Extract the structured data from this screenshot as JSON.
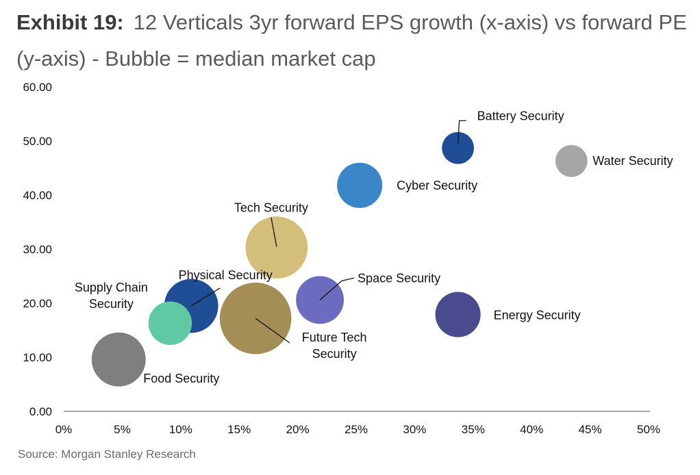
{
  "title": {
    "exhibit": "Exhibit 19:",
    "text": "12 Verticals 3yr forward EPS growth (x-axis) vs forward PE (y-axis) - Bubble = median market cap"
  },
  "source": "Source: Morgan Stanley Research",
  "chart_data": {
    "type": "scatter",
    "variant": "bubble",
    "xlim": [
      0,
      0.5
    ],
    "ylim": [
      0,
      60
    ],
    "x_ticks": [
      "0%",
      "5%",
      "10%",
      "15%",
      "20%",
      "25%",
      "30%",
      "35%",
      "40%",
      "45%",
      "50%"
    ],
    "y_ticks": [
      "0.00",
      "10.00",
      "20.00",
      "30.00",
      "40.00",
      "50.00",
      "60.00"
    ],
    "grid": false,
    "points": [
      {
        "label": "Battery Security",
        "x": 0.337,
        "y": 48.7,
        "size": 1.3,
        "color": "#1f4e96"
      },
      {
        "label": "Water Security",
        "x": 0.434,
        "y": 46.3,
        "size": 1.3,
        "color": "#a6a6a6"
      },
      {
        "label": "Cyber Security",
        "x": 0.253,
        "y": 41.8,
        "size": 2.6,
        "color": "#3a86c8"
      },
      {
        "label": "Tech Security",
        "x": 0.182,
        "y": 30.3,
        "size": 4.9,
        "color": "#d4bf7a"
      },
      {
        "label": "Physical Security",
        "x": 0.109,
        "y": 19.5,
        "size": 3.7,
        "color": "#1f4e96"
      },
      {
        "label": "Space Security",
        "x": 0.219,
        "y": 20.6,
        "size": 2.9,
        "color": "#6b6bc0"
      },
      {
        "label": "Supply Chain Security",
        "x": 0.091,
        "y": 16.3,
        "size": 2.4,
        "color": "#5fc9a3"
      },
      {
        "label": "Future Tech Security",
        "x": 0.164,
        "y": 17.2,
        "size": 6.5,
        "color": "#a48e55"
      },
      {
        "label": "Energy Security",
        "x": 0.337,
        "y": 17.9,
        "size": 2.6,
        "color": "#4a4a8e"
      },
      {
        "label": "Food Security",
        "x": 0.047,
        "y": 9.6,
        "size": 3.7,
        "color": "#7f7f7f"
      }
    ]
  }
}
